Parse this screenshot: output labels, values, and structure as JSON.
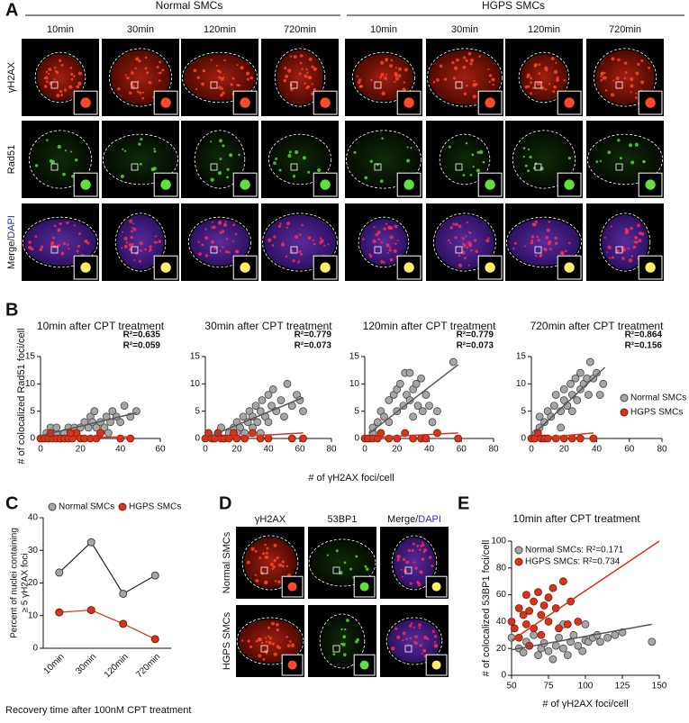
{
  "panel_a": {
    "label": "A",
    "groups": [
      "Normal SMCs",
      "HGPS SMCs"
    ],
    "times": [
      "10min",
      "30min",
      "120min",
      "720min",
      "10min",
      "30min",
      "120min",
      "720min"
    ],
    "rows": [
      "γH2AX",
      "Rad51",
      [
        "Merge/",
        "DAPI"
      ]
    ]
  },
  "panel_b": {
    "label": "B",
    "y_label": "# of colocalized Rad51 foci/cell",
    "x_label": "# of γH2AX foci/cell"
  },
  "panel_c": {
    "label": "C"
  },
  "panel_d": {
    "label": "D",
    "columns": [
      "γH2AX",
      "53BP1",
      [
        "Merge/",
        "DAPI"
      ]
    ],
    "rows": [
      "Normal SMCs",
      "HGPS SMCs"
    ]
  },
  "panel_e": {
    "label": "E"
  },
  "chart_data": [
    {
      "type": "scatter",
      "title": "10min after CPT treatment",
      "xlim": [
        0,
        60
      ],
      "xticks": [
        0,
        20,
        40,
        60
      ],
      "ylim": [
        0,
        15
      ],
      "yticks": [
        0,
        5,
        10,
        15
      ],
      "series": [
        {
          "color": "#a6a6a6",
          "annotation": "R²=0.635",
          "x": [
            1,
            3,
            5,
            8,
            10,
            12,
            14,
            15,
            17,
            18,
            20,
            22,
            24,
            25,
            26,
            28,
            30,
            30,
            32,
            33,
            35,
            36,
            38,
            40,
            42,
            45,
            48,
            8,
            4,
            27,
            34
          ],
          "values": [
            0,
            1,
            2,
            1,
            0,
            1,
            2,
            1,
            2,
            1,
            2,
            3,
            2,
            4,
            3,
            2,
            1,
            3,
            2,
            4,
            3,
            5,
            4,
            3,
            6,
            4,
            5,
            2,
            0,
            5,
            1
          ],
          "fit": {
            "x": [
              0,
              48
            ],
            "y": [
              0.5,
              4.7
            ]
          }
        },
        {
          "color": "#d7341c",
          "annotation": "R²=0.059",
          "x": [
            0,
            2,
            4,
            6,
            8,
            10,
            12,
            14,
            16,
            18,
            20,
            22,
            25,
            28,
            30,
            40,
            45,
            5,
            15
          ],
          "values": [
            0,
            0,
            0,
            0,
            0,
            0,
            0,
            0,
            0,
            1,
            0,
            0,
            0,
            0,
            1,
            0,
            0,
            1,
            1
          ],
          "fit": {
            "x": [
              0,
              45
            ],
            "y": [
              0.1,
              0.3
            ]
          }
        }
      ]
    },
    {
      "type": "scatter",
      "title": "30min after CPT treatment",
      "xlim": [
        0,
        80
      ],
      "xticks": [
        0,
        20,
        40,
        60,
        80
      ],
      "ylim": [
        0,
        15
      ],
      "yticks": [
        0,
        5,
        10,
        15
      ],
      "series": [
        {
          "color": "#a6a6a6",
          "annotation": "R²=0.779",
          "x": [
            5,
            8,
            10,
            12,
            15,
            18,
            20,
            22,
            24,
            25,
            27,
            28,
            30,
            30,
            32,
            33,
            35,
            36,
            38,
            40,
            40,
            42,
            43,
            45,
            48,
            50,
            52,
            55,
            58,
            60,
            62,
            35,
            20
          ],
          "values": [
            0,
            1,
            2,
            0,
            1,
            2,
            3,
            2,
            4,
            1,
            3,
            5,
            2,
            4,
            6,
            3,
            5,
            7,
            4,
            8,
            3,
            6,
            9,
            5,
            7,
            4,
            10,
            6,
            8,
            7,
            5,
            1,
            1
          ],
          "fit": {
            "x": [
              2,
              62
            ],
            "y": [
              0.3,
              7.5
            ]
          }
        },
        {
          "color": "#d7341c",
          "annotation": "R²=0.073",
          "x": [
            0,
            2,
            4,
            6,
            8,
            10,
            12,
            15,
            18,
            20,
            25,
            30,
            35,
            40,
            55,
            62
          ],
          "values": [
            0,
            1,
            0,
            0,
            1,
            0,
            0,
            0,
            1,
            0,
            0,
            1,
            0,
            0,
            0,
            0
          ],
          "fit": {
            "x": [
              0,
              62
            ],
            "y": [
              0,
              1
            ]
          }
        }
      ]
    },
    {
      "type": "scatter",
      "title": "120min after CPT treatment",
      "xlim": [
        0,
        80
      ],
      "xticks": [
        0,
        20,
        40,
        60,
        80
      ],
      "ylim": [
        0,
        15
      ],
      "yticks": [
        0,
        5,
        10,
        15
      ],
      "series": [
        {
          "color": "#a6a6a6",
          "annotation": "R²=0.779",
          "x": [
            3,
            5,
            5,
            8,
            10,
            12,
            15,
            18,
            20,
            20,
            22,
            24,
            25,
            26,
            28,
            30,
            30,
            32,
            33,
            35,
            36,
            38,
            40,
            42,
            45,
            55,
            15,
            28
          ],
          "values": [
            0,
            1,
            2,
            3,
            5,
            4,
            7,
            8,
            9,
            5,
            10,
            6,
            12,
            8,
            7,
            9,
            4,
            10,
            6,
            11,
            5,
            8,
            6,
            3,
            5,
            14,
            3,
            12
          ],
          "fit": {
            "x": [
              3,
              58
            ],
            "y": [
              1,
              13.5
            ]
          }
        },
        {
          "color": "#d7341c",
          "annotation": "R²=0.073",
          "x": [
            0,
            2,
            5,
            8,
            10,
            15,
            20,
            25,
            30,
            35,
            38,
            45,
            58
          ],
          "values": [
            0,
            0,
            0,
            0,
            1,
            0,
            0,
            1,
            0,
            0,
            0,
            1,
            0
          ],
          "fit": {
            "x": [
              0,
              58
            ],
            "y": [
              0.1,
              1
            ]
          }
        }
      ]
    },
    {
      "type": "scatter",
      "title": "720min after CPT treatment",
      "xlim": [
        0,
        80
      ],
      "xticks": [
        0,
        20,
        40,
        60,
        80
      ],
      "ylim": [
        0,
        15
      ],
      "yticks": [
        0,
        5,
        10,
        15
      ],
      "legend": "right",
      "series": [
        {
          "name": "Normal SMCs",
          "color": "#a6a6a6",
          "annotation": "R²=0.864",
          "x": [
            2,
            3,
            5,
            5,
            8,
            10,
            12,
            14,
            15,
            18,
            20,
            20,
            22,
            24,
            25,
            27,
            28,
            30,
            30,
            32,
            34,
            35,
            36,
            38,
            40,
            42,
            44,
            18,
            25
          ],
          "values": [
            0,
            1,
            2,
            4,
            3,
            5,
            4,
            6,
            8,
            5,
            7,
            9,
            6,
            10,
            8,
            11,
            7,
            9,
            12,
            10,
            11,
            8,
            14,
            11,
            12,
            8,
            10,
            2,
            5
          ],
          "fit": {
            "x": [
              2,
              45
            ],
            "y": [
              1,
              13
            ]
          }
        },
        {
          "name": "HGPS SMCs",
          "color": "#d7341c",
          "annotation": "R²=0.156",
          "x": [
            0,
            2,
            4,
            6,
            8,
            10,
            15,
            20,
            25,
            30,
            38
          ],
          "values": [
            0,
            0,
            1,
            0,
            0,
            0,
            0,
            0,
            0,
            0,
            0
          ],
          "fit": {
            "x": [
              2,
              38
            ],
            "y": [
              0,
              1
            ]
          }
        }
      ]
    },
    {
      "type": "line",
      "y_label": [
        "Percent of nuclei containing",
        "≥ 5 γH2AX foci"
      ],
      "x_label": "Recovery time after 100nM CPT treatment",
      "categories": [
        "10min",
        "30min",
        "120min",
        "720min"
      ],
      "ylim": [
        0,
        40
      ],
      "yticks": [
        0,
        10,
        20,
        30,
        40
      ],
      "legend": "top",
      "series": [
        {
          "name": "Normal SMCs",
          "color": "#a6a6a6",
          "values": [
            23.2,
            32.5,
            16.7,
            22.3
          ]
        },
        {
          "name": "HGPS SMCs",
          "color": "#d7341c",
          "values": [
            11,
            11.7,
            7.5,
            2.8
          ]
        }
      ]
    },
    {
      "type": "scatter",
      "title": "10min after CPT treatment",
      "x_label": "# of γH2AX foci/cell",
      "y_label": "# of colocalized 53BP1 foci/cell",
      "xlim": [
        50,
        150
      ],
      "xticks": [
        50,
        75,
        100,
        125,
        150
      ],
      "ylim": [
        0,
        100
      ],
      "yticks": [
        0,
        20,
        40,
        60,
        80,
        100
      ],
      "legend": "top-left",
      "series": [
        {
          "name": "Normal SMCs: R²=0.171",
          "color": "#a6a6a6",
          "x": [
            50,
            55,
            58,
            60,
            62,
            65,
            68,
            70,
            72,
            75,
            78,
            80,
            82,
            85,
            88,
            90,
            92,
            95,
            98,
            100,
            102,
            105,
            108,
            110,
            115,
            120,
            125,
            145,
            85,
            100
          ],
          "values": [
            28,
            20,
            17,
            25,
            22,
            30,
            15,
            20,
            24,
            18,
            12,
            22,
            28,
            20,
            15,
            25,
            30,
            22,
            18,
            26,
            25,
            28,
            30,
            25,
            28,
            30,
            32,
            25,
            38,
            38
          ],
          "fit": {
            "x": [
              50,
              145
            ],
            "y": [
              19,
              38
            ]
          }
        },
        {
          "name": "HGPS SMCs: R²=0.734",
          "color": "#d7341c",
          "x": [
            52,
            55,
            55,
            58,
            60,
            60,
            62,
            65,
            65,
            68,
            70,
            70,
            72,
            75,
            75,
            78,
            80,
            82,
            85,
            88,
            90,
            95,
            62,
            50
          ],
          "values": [
            35,
            50,
            28,
            45,
            60,
            38,
            48,
            55,
            35,
            62,
            45,
            30,
            52,
            58,
            40,
            65,
            50,
            35,
            70,
            38,
            55,
            40,
            22,
            40
          ],
          "fit": {
            "x": [
              50,
              150
            ],
            "y": [
              26,
              100
            ]
          }
        }
      ]
    }
  ]
}
